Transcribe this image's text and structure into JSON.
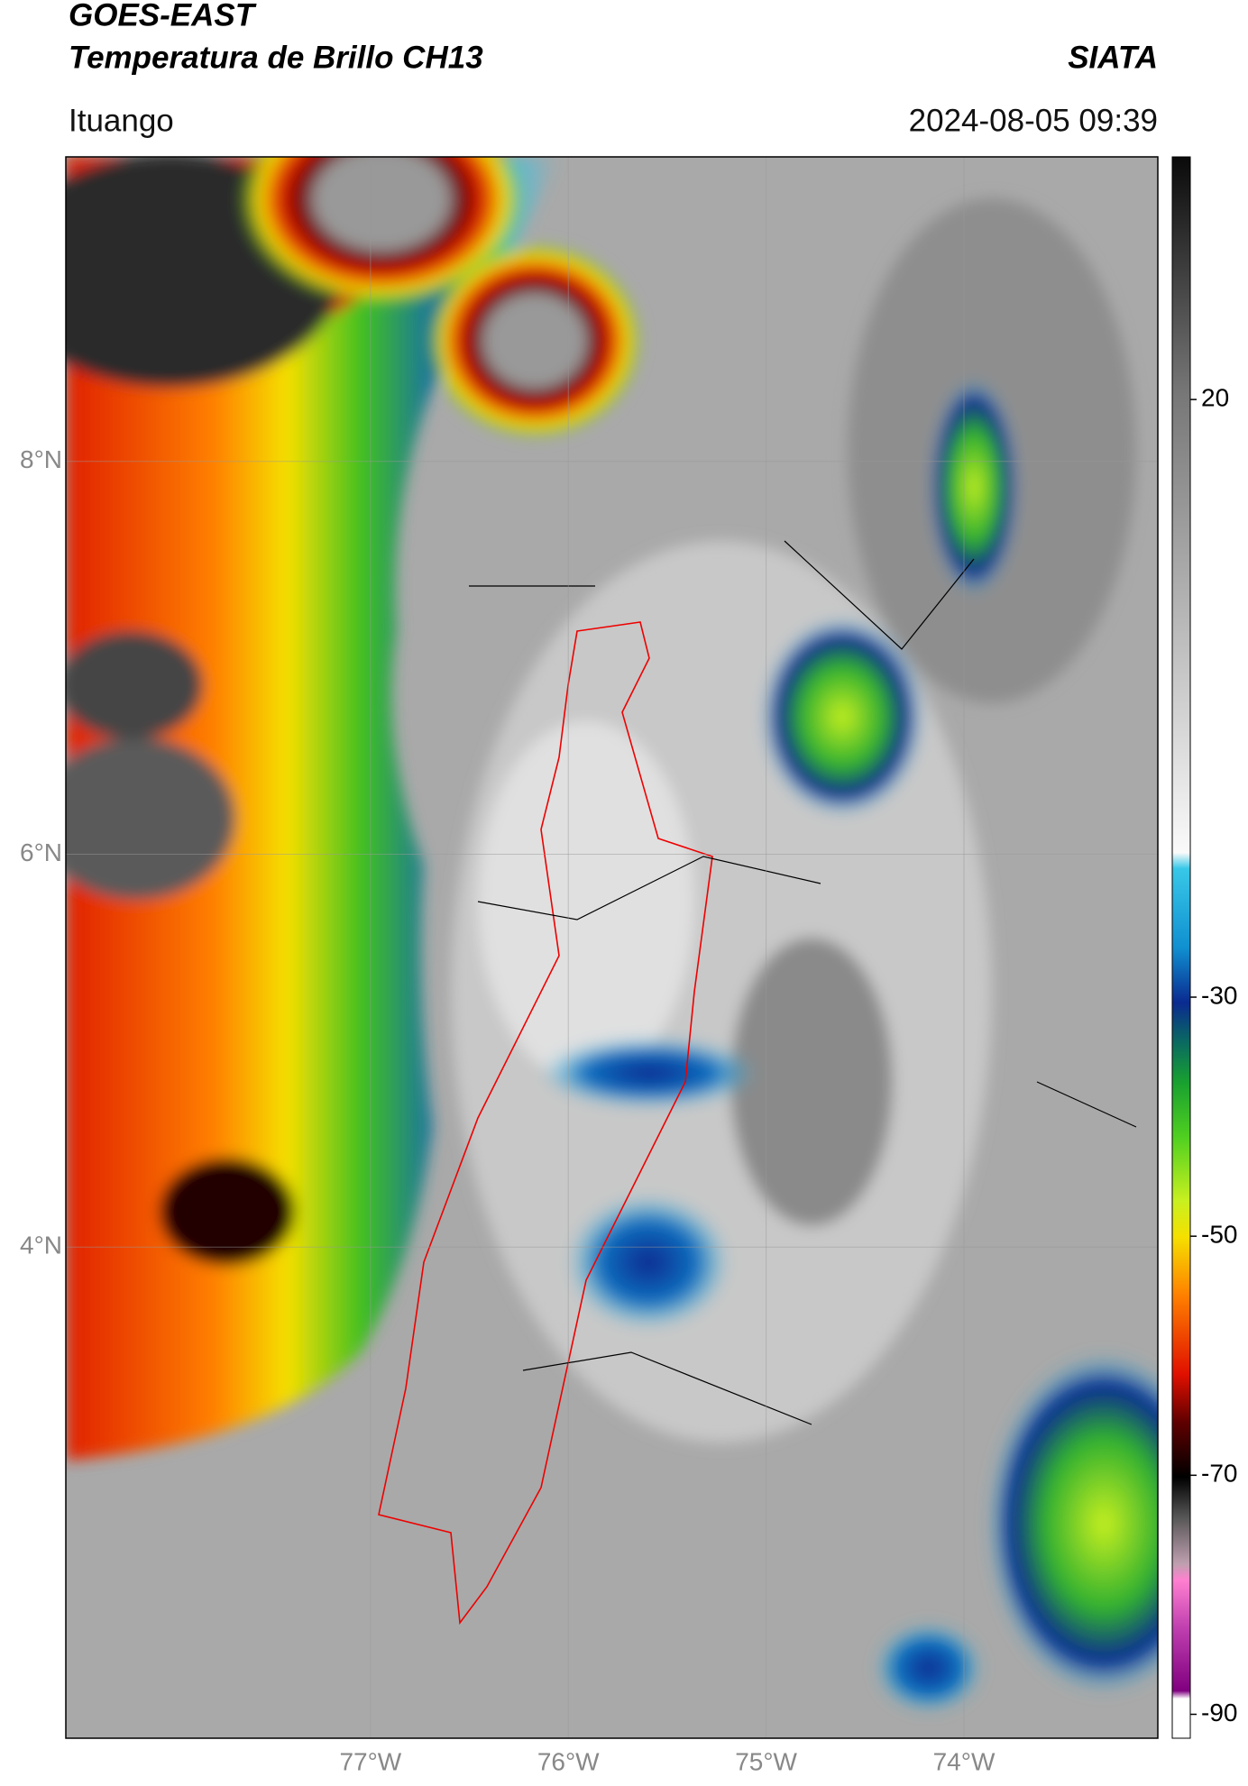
{
  "header": {
    "title_line1": "GOES-EAST",
    "title_line2": "Temperatura de Brillo CH13",
    "source": "SIATA",
    "location": "Ituango",
    "datetime": "2024-08-05 09:39"
  },
  "map": {
    "lat_lim": [
      1.5,
      9.55
    ],
    "lon_lim": [
      -78.54,
      -73.02
    ],
    "lat_ticks": [
      {
        "value": 8,
        "label": "8°N"
      },
      {
        "value": 6,
        "label": "6°N"
      },
      {
        "value": 4,
        "label": "4°N"
      }
    ],
    "lon_ticks": [
      {
        "value": -77,
        "label": "77°W"
      },
      {
        "value": -76,
        "label": "76°W"
      },
      {
        "value": -75,
        "label": "75°W"
      },
      {
        "value": -74,
        "label": "74°W"
      }
    ]
  },
  "colorbar": {
    "clim": [
      -92,
      40.3
    ],
    "ticks": [
      20,
      -30,
      -50,
      -70,
      -90
    ]
  }
}
